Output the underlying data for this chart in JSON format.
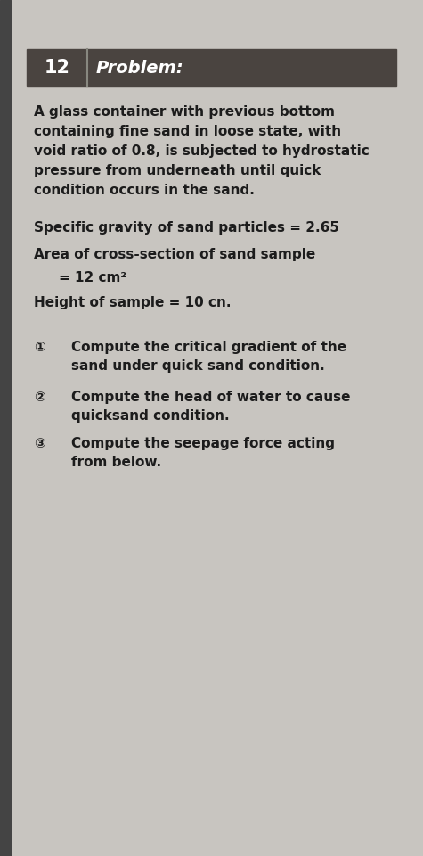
{
  "page_bg": "#c8c5c0",
  "header_bg": "#4a4440",
  "header_num": "12",
  "header_title": "Problem:",
  "header_text_color": "#ffffff",
  "para1_line1": "A glass container with previous bottom",
  "para1_line2": "containing fine sand in loose state, with",
  "para1_line3": "void ratio of 0.8, is subjected to hydrostatic",
  "para1_line4": "pressure from underneath until quick",
  "para1_line5": "condition occurs in the sand.",
  "line1": "Specific gravity of sand particles = 2.65",
  "line2": "Area of cross-section of sand sample",
  "line3": "= 12 cm²",
  "line4": "Height of sample = 10 cn.",
  "item1_num": "①",
  "item1a": "Compute the critical gradient of the",
  "item1b": "sand under quick sand condition.",
  "item2_num": "②",
  "item2a": "Compute the head of water to cause",
  "item2b": "quicksand condition.",
  "item3_num": "③",
  "item3a": "Compute the seepage force acting",
  "item3b": "from below.",
  "left_bar_color": "#444444",
  "font_color": "#1c1c1c",
  "divider_color": "#888880"
}
